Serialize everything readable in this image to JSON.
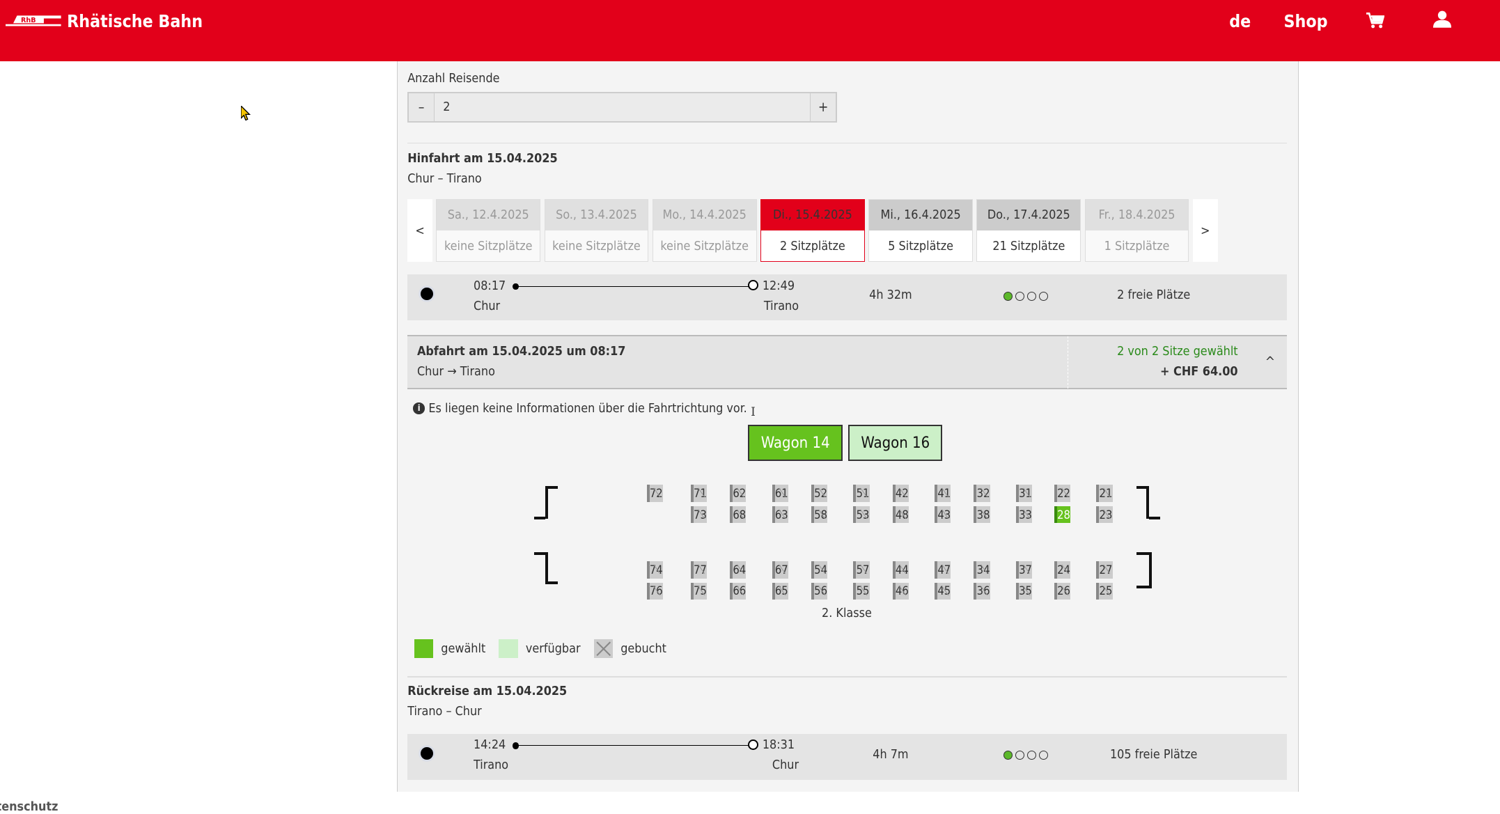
{
  "header": {
    "brand": "Rhätische Bahn",
    "logo_text": "RhB",
    "lang": "de",
    "shop": "Shop",
    "cart_icon": "cart-icon",
    "user_icon": "user-icon",
    "color": "#e2001a"
  },
  "travellers": {
    "label": "Anzahl Reisende",
    "minus": "–",
    "value": "2",
    "plus": "+"
  },
  "outbound": {
    "title": "Hinfahrt am 15.04.2025",
    "route": "Chur – Tirano",
    "prev": "<",
    "next": ">",
    "dates": [
      {
        "date": "Sa., 12.4.2025",
        "seats": "keine Sitzplätze",
        "state": "none"
      },
      {
        "date": "So., 13.4.2025",
        "seats": "keine Sitzplätze",
        "state": "none"
      },
      {
        "date": "Mo., 14.4.2025",
        "seats": "keine Sitzplätze",
        "state": "none"
      },
      {
        "date": "Di., 15.4.2025",
        "seats": "2 Sitzplätze",
        "state": "selected"
      },
      {
        "date": "Mi., 16.4.2025",
        "seats": "5 Sitzplätze",
        "state": "available"
      },
      {
        "date": "Do., 17.4.2025",
        "seats": "21 Sitzplätze",
        "state": "available"
      },
      {
        "date": "Fr., 18.4.2025",
        "seats": "1 Sitzplätze",
        "state": "none"
      }
    ],
    "connection": {
      "dep_time": "08:17",
      "dep_station": "Chur",
      "arr_time": "12:49",
      "arr_station": "Tirano",
      "duration": "4h 32m",
      "occupancy_level": 1,
      "free": "2 freie Plätze"
    }
  },
  "details": {
    "title": "Abfahrt am 15.04.2025 um 08:17",
    "route": "Chur → Tirano",
    "selected": "2 von 2 Sitze gewählt",
    "price": "+ CHF 64.00",
    "collapse": "^"
  },
  "info": "Es liegen keine Informationen über die Fahrtrichtung vor.",
  "wagons": [
    "Wagon 14",
    "Wagon 16"
  ],
  "seatmap": {
    "class": "2. Klasse",
    "rows": [
      [
        "72",
        "71",
        "62",
        "61",
        "52",
        "51",
        "42",
        "41",
        "32",
        "31",
        "22",
        "21"
      ],
      [
        null,
        "73",
        "68",
        "63",
        "58",
        "53",
        "48",
        "43",
        "38",
        "33",
        "28",
        "23"
      ],
      [
        "74",
        "77",
        "64",
        "67",
        "54",
        "57",
        "44",
        "47",
        "34",
        "37",
        "24",
        "27"
      ],
      [
        "76",
        "75",
        "66",
        "65",
        "56",
        "55",
        "46",
        "45",
        "36",
        "35",
        "26",
        "25"
      ]
    ],
    "chosen": [
      "28"
    ]
  },
  "legend": {
    "chosen": "gewählt",
    "available": "verfügbar",
    "booked": "gebucht",
    "colors": {
      "chosen": "#66c21e",
      "available": "#ccf0c8"
    }
  },
  "return": {
    "title": "Rückreise am 15.04.2025",
    "route": "Tirano – Chur",
    "connection": {
      "dep_time": "14:24",
      "dep_station": "Tirano",
      "arr_time": "18:31",
      "arr_station": "Chur",
      "duration": "4h 7m",
      "occupancy_level": 1,
      "free": "105 freie Plätze"
    }
  },
  "footer": {
    "partial": "tenschutz"
  }
}
